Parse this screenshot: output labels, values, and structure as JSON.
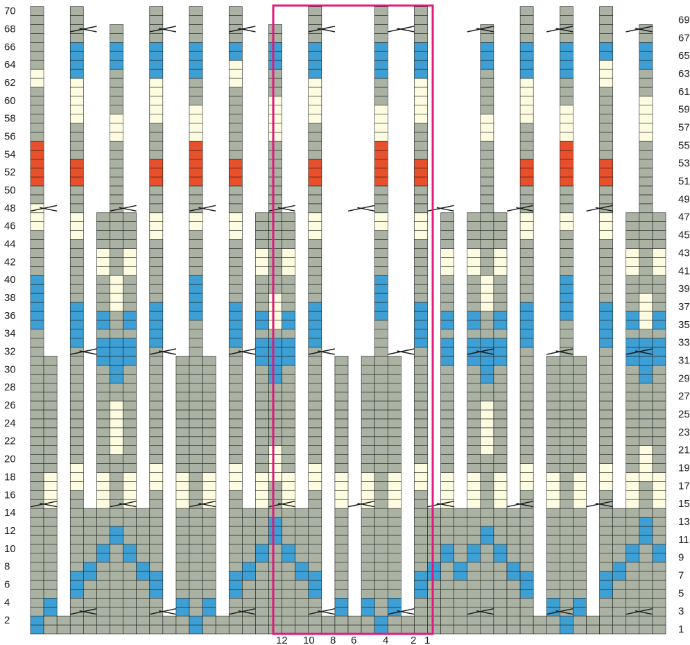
{
  "colors": {
    "main": "#a9b2a3",
    "blue": "#3d9fd3",
    "cream": "#fdfce0",
    "red": "#e8502c",
    "grid": "#1a1a1a",
    "repeat_box": "#e0197d",
    "background": "#ffffff"
  },
  "chart_data": {
    "type": "knitting-chart",
    "stitch_count": 32,
    "row_count": 70,
    "left_row_labels": [
      "2",
      "4",
      "6",
      "8",
      "10",
      "12",
      "14",
      "16",
      "18",
      "20",
      "22",
      "24",
      "26",
      "28",
      "30",
      "32",
      "34",
      "36",
      "38",
      "40",
      "42",
      "44",
      "46",
      "48",
      "50",
      "52",
      "54",
      "56",
      "58",
      "60",
      "62",
      "64",
      "66",
      "68",
      "70"
    ],
    "right_row_labels": [
      "1",
      "3",
      "5",
      "7",
      "9",
      "11",
      "13",
      "15",
      "17",
      "19",
      "21",
      "23",
      "25",
      "27",
      "29",
      "31",
      "33",
      "35",
      "37",
      "39",
      "41",
      "43",
      "45",
      "47",
      "49",
      "51",
      "53",
      "55",
      "57",
      "59",
      "61",
      "63",
      "65",
      "67",
      "69"
    ],
    "stitch_labels": [
      "12",
      "10",
      "8",
      "6",
      "4",
      "2",
      "1"
    ],
    "repeat_box": {
      "first_stitch": 12,
      "last_stitch": 1,
      "first_row": 1,
      "last_row": 70
    }
  }
}
